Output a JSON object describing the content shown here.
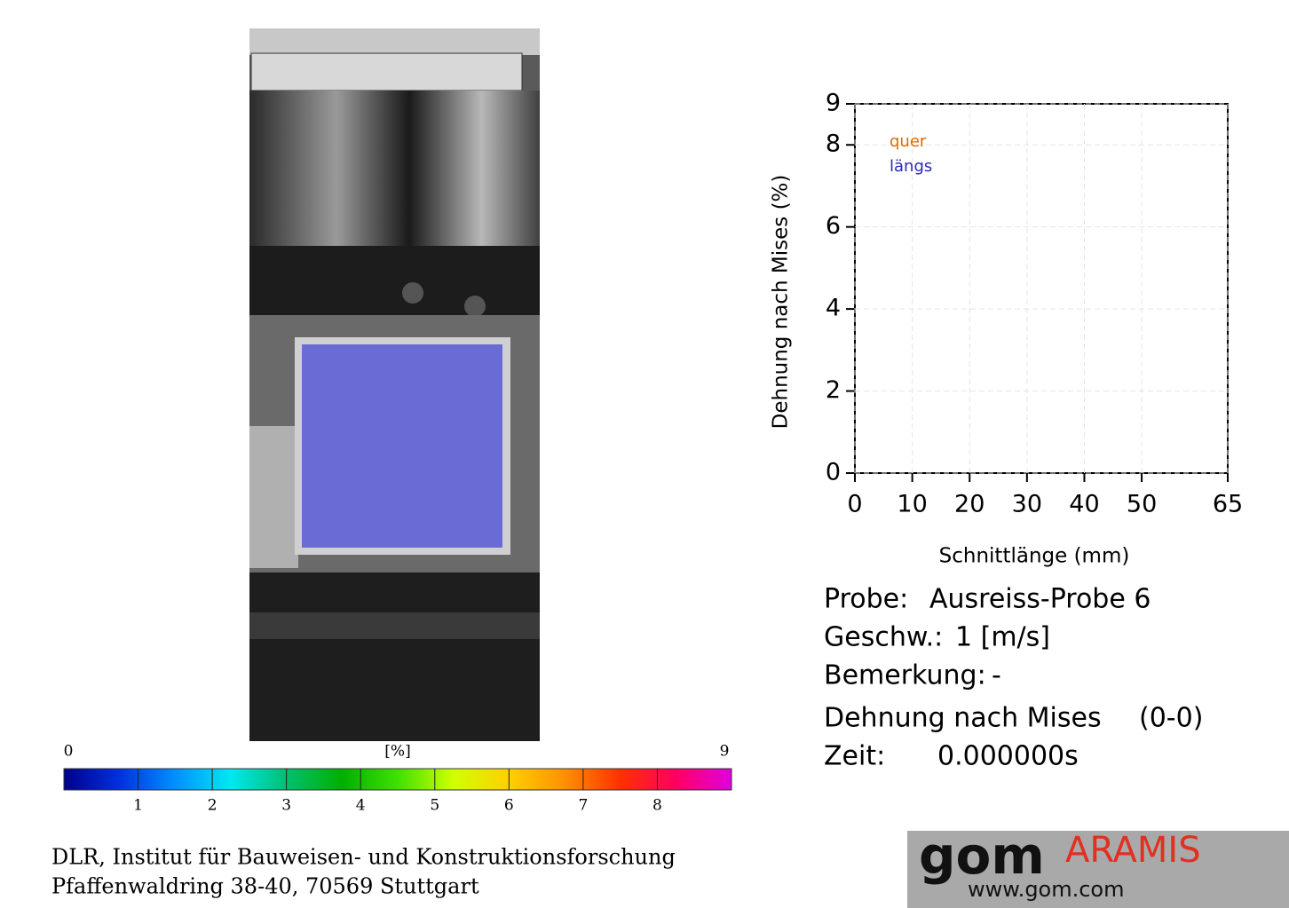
{
  "chart_data": {
    "type": "line",
    "xlabel": "Schnittlänge (mm)",
    "ylabel": "Dehnung nach Mises (%)",
    "x": [],
    "series": [
      {
        "name": "quer",
        "color": "#e06a00",
        "values": []
      },
      {
        "name": "längs",
        "color": "#2a2ab8",
        "values": []
      }
    ],
    "xlim": [
      0,
      65
    ],
    "xticks": [
      0,
      10,
      20,
      30,
      40,
      50,
      65
    ],
    "ylim": [
      0,
      9
    ],
    "yticks": [
      0,
      2,
      4,
      6,
      8,
      9
    ],
    "grid": true
  },
  "colorbar": {
    "label": "[%]",
    "min": 0,
    "max": 9,
    "ticks": [
      1,
      2,
      3,
      4,
      5,
      6,
      7,
      8
    ],
    "colors": [
      "#00008c",
      "#0030e0",
      "#0090ff",
      "#00e8f0",
      "#00c070",
      "#00b000",
      "#40e000",
      "#d0ff00",
      "#ffd000",
      "#ff9000",
      "#ff3000",
      "#ff0060",
      "#e000e0"
    ]
  },
  "info": [
    [
      "Probe:",
      "Ausreiss-Probe 6"
    ],
    [
      "Geschw.:",
      "1 [m/s]"
    ],
    [
      "Bemerkung:",
      "-"
    ],
    [
      "Dehnung nach Mises",
      "(0-0)"
    ],
    [
      "Zeit:",
      "0.000000s"
    ]
  ],
  "footer": [
    "DLR, Institut für Bauweisen- und Konstruktionsforschung",
    "Pfaffenwaldring 38-40, 70569 Stuttgart"
  ],
  "logo": {
    "brand": "gom",
    "product": "ARAMIS",
    "url": "www.gom.com"
  }
}
